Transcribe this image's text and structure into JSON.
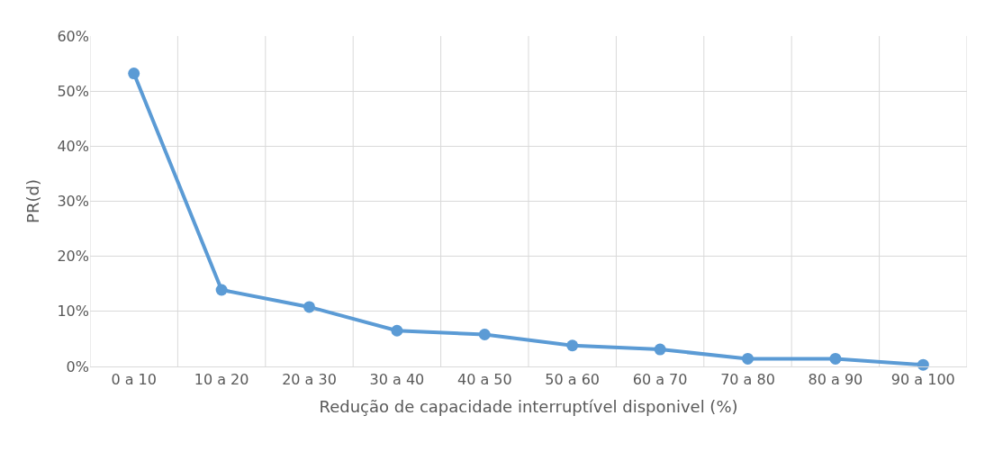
{
  "chart_data": {
    "type": "line",
    "xlabel": "Redução de capacidade interruptível disponivel (%)",
    "ylabel": "PR(d)",
    "categories": [
      "0 a 10",
      "10 a 20",
      "20 a 30",
      "30 a 40",
      "40 a 50",
      "50 a 60",
      "60 a 70",
      "70 a 80",
      "80 a 90",
      "90 a 100"
    ],
    "series": [
      {
        "color": "#5b9bd5",
        "values": [
          53.2,
          13.9,
          10.8,
          6.5,
          5.8,
          3.8,
          3.1,
          1.4,
          1.4,
          0.3
        ]
      }
    ],
    "ylim": [
      0,
      60
    ],
    "yticks": [
      {
        "value": 0,
        "label": "0%"
      },
      {
        "value": 10,
        "label": "10%"
      },
      {
        "value": 20,
        "label": "20%"
      },
      {
        "value": 30,
        "label": "30%"
      },
      {
        "value": 40,
        "label": "40%"
      },
      {
        "value": 50,
        "label": "50%"
      },
      {
        "value": 60,
        "label": "60%"
      }
    ],
    "grid": true,
    "marker": "circle",
    "line_style": "solid",
    "legend": false
  }
}
